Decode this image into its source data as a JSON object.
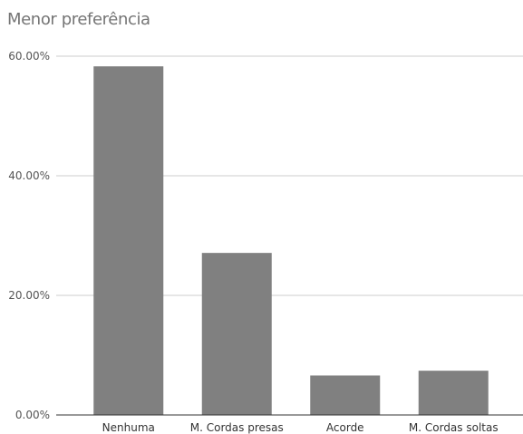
{
  "chart_data": {
    "type": "bar",
    "title": "Menor preferência",
    "categories": [
      "Nenhuma",
      "M. Cordas presas",
      "Acorde",
      "M. Cordas soltas"
    ],
    "values": [
      58.3,
      27.1,
      6.6,
      7.4
    ],
    "y_tick_labels": [
      "0.00%",
      "20.00%",
      "40.00%",
      "60.00%"
    ],
    "y_tick_values": [
      0,
      20,
      40,
      60
    ],
    "ylim": [
      0,
      60
    ],
    "xlabel": "",
    "ylabel": "",
    "grid": true,
    "bar_color": "#808080",
    "grid_color": "#cccccc"
  }
}
